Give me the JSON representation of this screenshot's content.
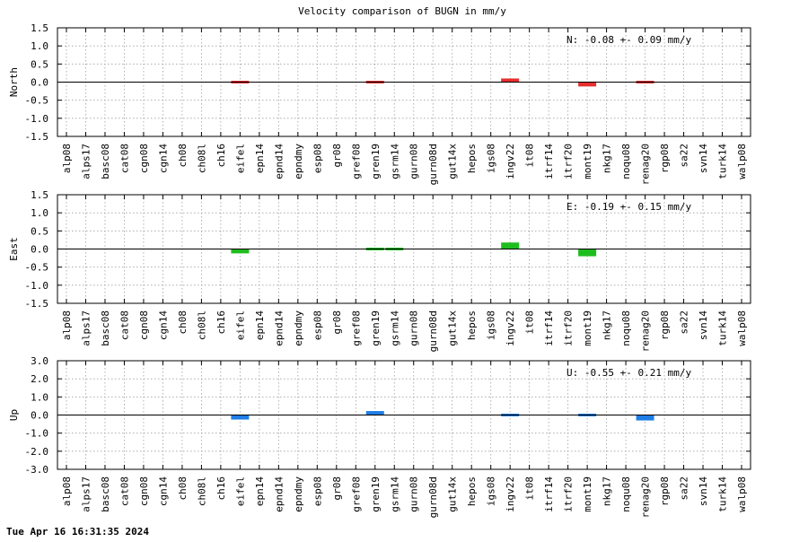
{
  "title": "Velocity comparison of BUGN in mm/y",
  "footer": "Tue Apr 16 16:31:35 2024",
  "chart_data": [
    {
      "type": "bar",
      "ylabel": "North",
      "ylim": [
        -1.5,
        1.5
      ],
      "yticks": [
        "1.5",
        "1.0",
        "0.5",
        "0.0",
        "-0.5",
        "-1.0",
        "-1.5"
      ],
      "grid": true,
      "color": "#e62e2e",
      "annotation": "N:  -0.08 +-  0.09 mm/y",
      "categories": [
        "alp08",
        "alps17",
        "basc08",
        "cat08",
        "cgn08",
        "cgn14",
        "ch08",
        "ch08l",
        "ch16",
        "eifel",
        "epn14",
        "epnd14",
        "epndmy",
        "esp08",
        "gr08",
        "gref08",
        "gren19",
        "gsrm14",
        "gurn08",
        "gurn08d",
        "gut14x",
        "hepos",
        "igs08",
        "ingv22",
        "it08",
        "itrf14",
        "itrf20",
        "mont19",
        "nkg17",
        "noqu08",
        "renag20",
        "rgp08",
        "sa22",
        "svn14",
        "turk14",
        "walp08"
      ],
      "values": [
        null,
        null,
        null,
        null,
        null,
        null,
        null,
        null,
        null,
        0.02,
        null,
        null,
        null,
        null,
        null,
        null,
        -0.03,
        null,
        null,
        null,
        null,
        null,
        null,
        0.1,
        null,
        null,
        null,
        -0.12,
        null,
        null,
        -0.02,
        null,
        null,
        null,
        null,
        null
      ]
    },
    {
      "type": "bar",
      "ylabel": "East",
      "ylim": [
        -1.5,
        1.5
      ],
      "yticks": [
        "1.5",
        "1.0",
        "0.5",
        "0.0",
        "-0.5",
        "-1.0",
        "-1.5"
      ],
      "grid": true,
      "color": "#1ebd1e",
      "annotation": "E:  -0.19 +-  0.15 mm/y",
      "categories": [
        "alp08",
        "alps17",
        "basc08",
        "cat08",
        "cgn08",
        "cgn14",
        "ch08",
        "ch08l",
        "ch16",
        "eifel",
        "epn14",
        "epnd14",
        "epndmy",
        "esp08",
        "gr08",
        "gref08",
        "gren19",
        "gsrm14",
        "gurn08",
        "gurn08d",
        "gut14x",
        "hepos",
        "igs08",
        "ingv22",
        "it08",
        "itrf14",
        "itrf20",
        "mont19",
        "nkg17",
        "noqu08",
        "renag20",
        "rgp08",
        "sa22",
        "svn14",
        "turk14",
        "walp08"
      ],
      "values": [
        null,
        null,
        null,
        null,
        null,
        null,
        null,
        null,
        null,
        -0.12,
        null,
        null,
        null,
        null,
        null,
        null,
        0.06,
        0.06,
        null,
        null,
        null,
        null,
        null,
        0.18,
        null,
        null,
        null,
        -0.2,
        null,
        null,
        null,
        null,
        null,
        null,
        null,
        null
      ]
    },
    {
      "type": "bar",
      "ylabel": "Up",
      "ylim": [
        -3.0,
        3.0
      ],
      "yticks": [
        "3.0",
        "2.0",
        "1.0",
        "0.0",
        "-1.0",
        "-2.0",
        "-3.0"
      ],
      "grid": true,
      "color": "#1e7ee6",
      "annotation": "U:  -0.55 +-  0.21 mm/y",
      "categories": [
        "alp08",
        "alps17",
        "basc08",
        "cat08",
        "cgn08",
        "cgn14",
        "ch08",
        "ch08l",
        "ch16",
        "eifel",
        "epn14",
        "epnd14",
        "epndmy",
        "esp08",
        "gr08",
        "gref08",
        "gren19",
        "gsrm14",
        "gurn08",
        "gurn08d",
        "gut14x",
        "hepos",
        "igs08",
        "ingv22",
        "it08",
        "itrf14",
        "itrf20",
        "mont19",
        "nkg17",
        "noqu08",
        "renag20",
        "rgp08",
        "sa22",
        "svn14",
        "turk14",
        "walp08"
      ],
      "values": [
        null,
        null,
        null,
        null,
        null,
        null,
        null,
        null,
        null,
        -0.25,
        null,
        null,
        null,
        null,
        null,
        null,
        0.22,
        null,
        null,
        null,
        null,
        null,
        null,
        0.08,
        null,
        null,
        null,
        -0.05,
        null,
        null,
        -0.3,
        null,
        null,
        null,
        null,
        null
      ]
    }
  ]
}
